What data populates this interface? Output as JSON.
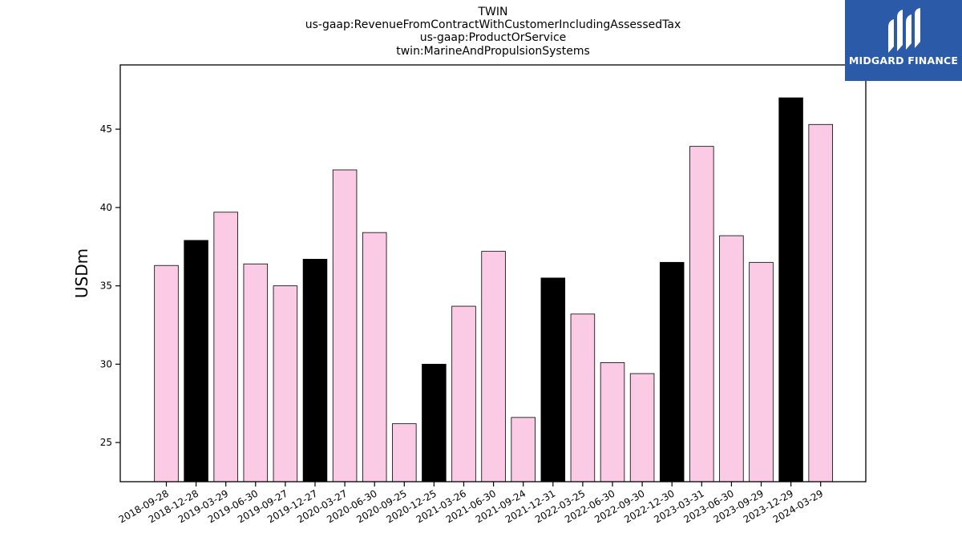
{
  "chart_data": {
    "type": "bar",
    "title_lines": [
      "TWIN",
      "us-gaap:RevenueFromContractWithCustomerIncludingAssessedTax",
      "us-gaap:ProductOrService",
      "twin:MarineAndPropulsionSystems"
    ],
    "xlabel": "",
    "ylabel": "USDm",
    "ylim": [
      22.5,
      49.1
    ],
    "yticks": [
      25,
      30,
      35,
      40,
      45
    ],
    "categories": [
      "2018-09-28",
      "2018-12-28",
      "2019-03-29",
      "2019-06-30",
      "2019-09-27",
      "2019-12-27",
      "2020-03-27",
      "2020-06-30",
      "2020-09-25",
      "2020-12-25",
      "2021-03-26",
      "2021-06-30",
      "2021-09-24",
      "2021-12-31",
      "2022-03-25",
      "2022-06-30",
      "2022-09-30",
      "2022-12-30",
      "2023-03-31",
      "2023-06-30",
      "2023-09-29",
      "2023-12-29",
      "2024-03-29"
    ],
    "values": [
      36.3,
      37.9,
      39.7,
      36.4,
      35.0,
      36.7,
      42.4,
      38.4,
      26.2,
      30.0,
      33.7,
      37.2,
      26.6,
      35.5,
      33.2,
      30.1,
      29.4,
      36.5,
      43.9,
      38.2,
      36.5,
      47.0,
      45.3
    ],
    "bar_colors": [
      "#fbcbe5",
      "#000000",
      "#fbcbe5",
      "#fbcbe5",
      "#fbcbe5",
      "#000000",
      "#fbcbe5",
      "#fbcbe5",
      "#fbcbe5",
      "#000000",
      "#fbcbe5",
      "#fbcbe5",
      "#fbcbe5",
      "#000000",
      "#fbcbe5",
      "#fbcbe5",
      "#fbcbe5",
      "#000000",
      "#fbcbe5",
      "#fbcbe5",
      "#fbcbe5",
      "#000000",
      "#fbcbe5"
    ],
    "grid": false
  },
  "logo": {
    "text": "MIDGARD FINANCE",
    "background": "#2a5aa8"
  }
}
